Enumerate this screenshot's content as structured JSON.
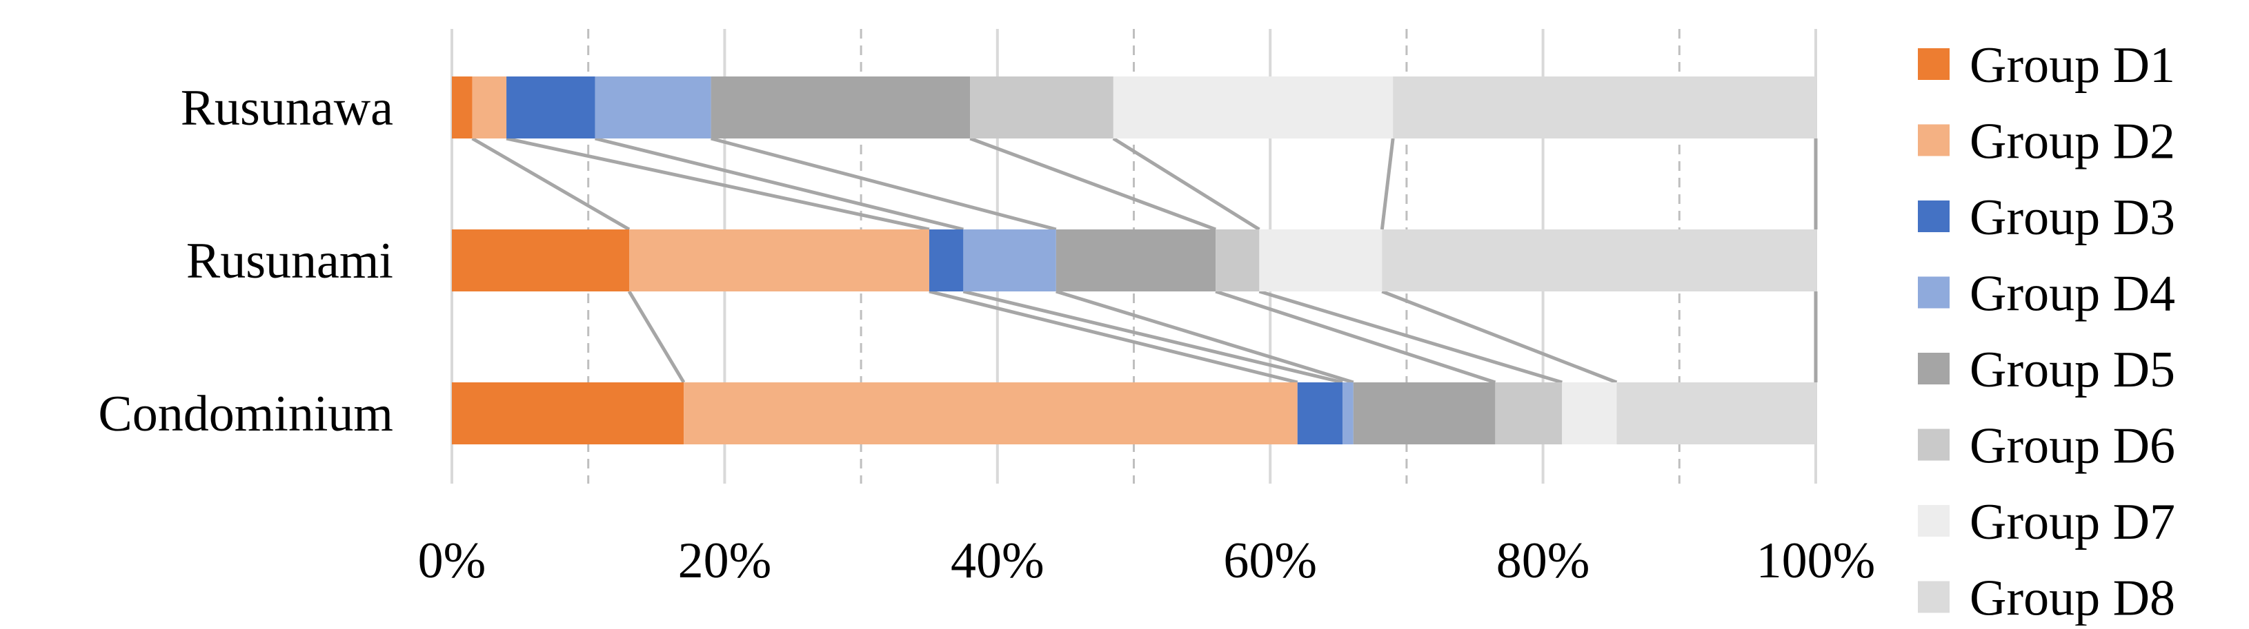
{
  "chart_data": {
    "type": "bar",
    "orientation": "horizontal",
    "stacked": "percent",
    "categories": [
      "Rusunawa",
      "Rusunami",
      "Condominium"
    ],
    "series": [
      {
        "name": "Group D1",
        "color": "#ED7D31",
        "values": [
          1.5,
          13.0,
          17.0
        ]
      },
      {
        "name": "Group D2",
        "color": "#F4B183",
        "values": [
          2.5,
          22.0,
          45.0
        ]
      },
      {
        "name": "Group D3",
        "color": "#4472C4",
        "values": [
          6.5,
          2.5,
          3.3
        ]
      },
      {
        "name": "Group D4",
        "color": "#8FAADC",
        "values": [
          8.5,
          6.8,
          0.8
        ]
      },
      {
        "name": "Group D5",
        "color": "#A5A5A5",
        "values": [
          19.0,
          11.7,
          10.4
        ]
      },
      {
        "name": "Group D6",
        "color": "#C9C9C9",
        "values": [
          10.5,
          3.2,
          4.9
        ]
      },
      {
        "name": "Group D7",
        "color": "#EDEDED",
        "values": [
          20.5,
          9.0,
          4.0
        ]
      },
      {
        "name": "Group D8",
        "color": "#DBDBDB",
        "values": [
          31.0,
          31.8,
          14.6
        ]
      }
    ],
    "xlim": [
      0,
      100
    ],
    "x_ticks": [
      "0%",
      "20%",
      "40%",
      "60%",
      "80%",
      "100%"
    ],
    "grid": {
      "major_solid": true,
      "minor_dashed": true
    },
    "series_lines": true,
    "legend": {
      "placement": "right"
    }
  }
}
